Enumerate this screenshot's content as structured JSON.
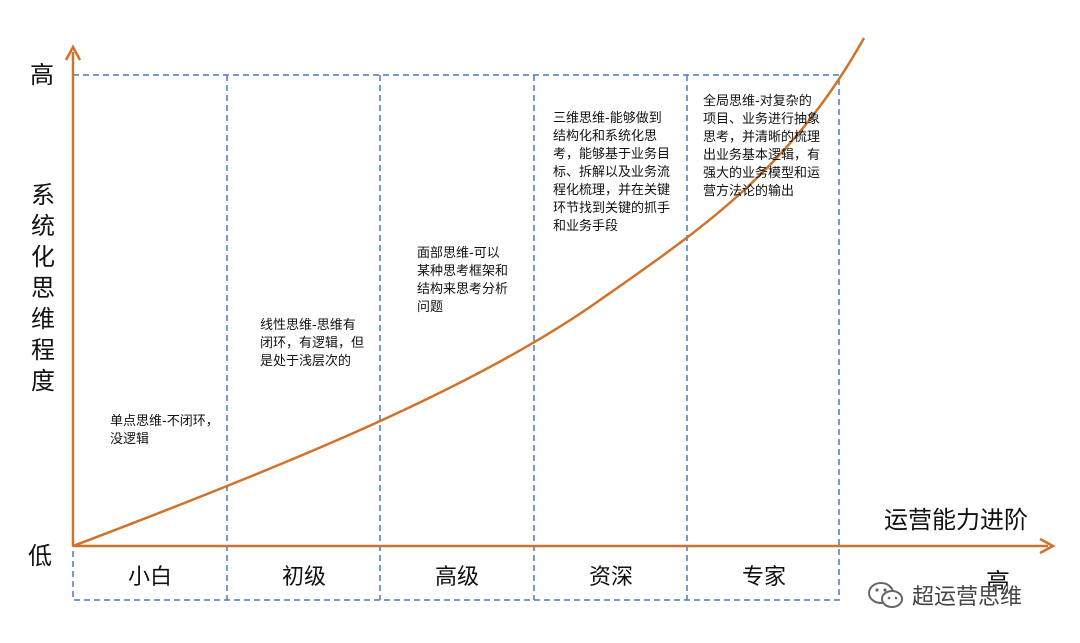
{
  "y_axis": {
    "title": "系统化思维程度",
    "high_label": "高",
    "low_label": "低"
  },
  "x_axis": {
    "title": "运营能力进阶",
    "high_label": "高"
  },
  "stages": [
    {
      "label": "小白",
      "description": "单点思维-不闭环，没逻辑"
    },
    {
      "label": "初级",
      "description": "线性思维-思维有闭环，有逻辑，但是处于浅层次的"
    },
    {
      "label": "高级",
      "description": "面部思维-可以某种思考框架和结构来思考分析问题"
    },
    {
      "label": "资深",
      "description": "三维思维-能够做到结构化和系统化思考，能够基于业务目标、拆解以及业务流程化梳理，并在关键环节找到关键的抓手和业务手段"
    },
    {
      "label": "专家",
      "description": "全局思维-对复杂的项目、业务进行抽象思考，并清晰的梳理出业务基本逻辑，有强大的业务模型和运营方法论的输出"
    }
  ],
  "watermark": {
    "text": "超运营思维",
    "icon": "wechat-icon"
  },
  "colors": {
    "axis": "#d0722c",
    "curve": "#d0722c",
    "dashed_box": "#4a7ab8",
    "text": "#111111"
  }
}
